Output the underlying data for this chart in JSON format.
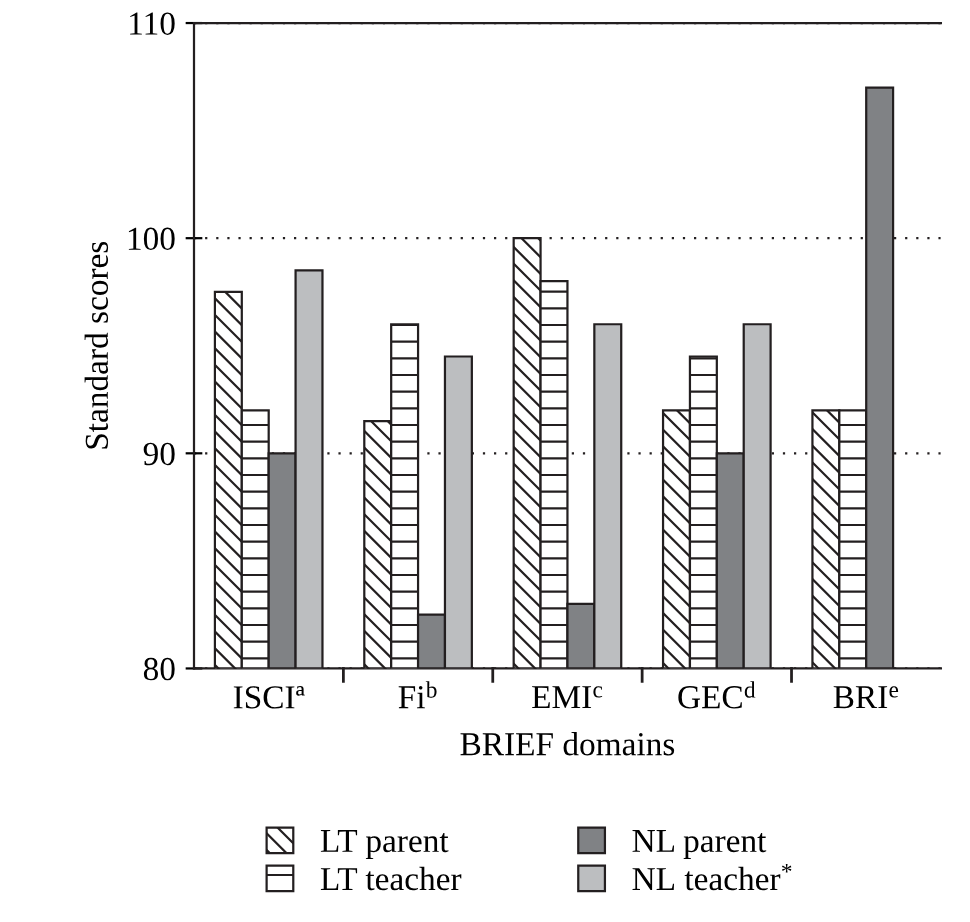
{
  "chart_data": {
    "type": "bar",
    "xlabel": "BRIEF domains",
    "ylabel": "Standard scores",
    "categories": [
      "ISCIª",
      "Fi$^{b}$",
      "EMI$^{c}$",
      "GEC$^{d}$",
      "BRI$^{e}$"
    ],
    "series": [
      {
        "name": "LT parent",
        "color": "#231f20",
        "values": [
          97.5,
          91.5,
          100,
          92,
          92
        ]
      },
      {
        "name": "LT teacher",
        "color": "#231f20",
        "values": [
          92,
          96,
          98,
          94.5,
          92
        ]
      },
      {
        "name": "NL parent",
        "color": "#808285",
        "values": [
          90,
          82.5,
          83,
          90,
          107
        ]
      },
      {
        "name": "NL teacher$^{*}$",
        "color": "#bcbec0",
        "values": [
          98.5,
          94.5,
          96,
          96,
          null
        ]
      }
    ],
    "ylim": [
      80,
      110
    ],
    "yticks": [
      80,
      90,
      100,
      110
    ],
    "grid": "y",
    "legend": "bottom"
  }
}
